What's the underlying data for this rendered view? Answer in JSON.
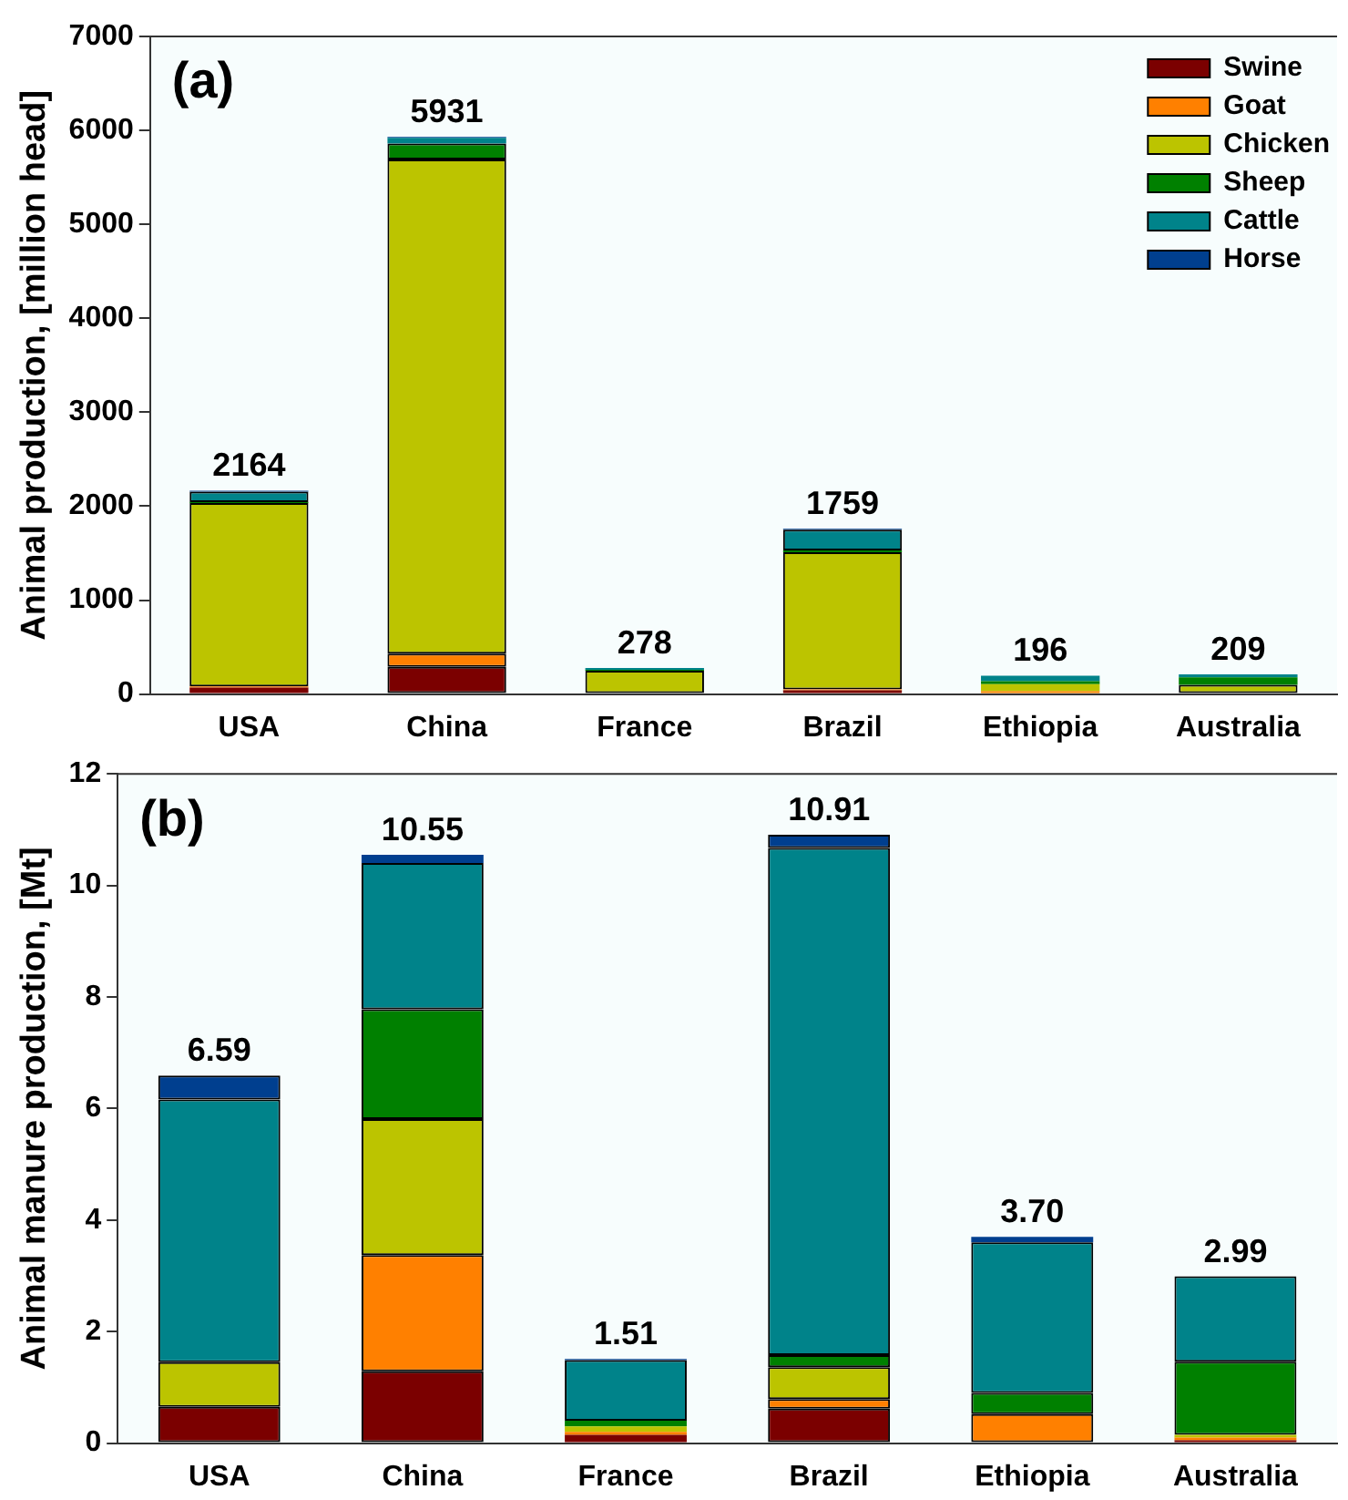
{
  "chart_data": [
    {
      "type": "bar",
      "stacked": true,
      "ylabel": "Animal production, [million head]",
      "annotations": [
        "(a)"
      ],
      "categories": [
        "USA",
        "China",
        "France",
        "Brazil",
        "Ethiopia",
        "Australia"
      ],
      "ylim": [
        0,
        7000
      ],
      "yticks": [
        0,
        1000,
        2000,
        3000,
        4000,
        5000,
        6000,
        7000
      ],
      "legend": "top right",
      "totals": [
        "2164",
        "5931",
        "278",
        "1759",
        "196",
        "209"
      ],
      "series": [
        {
          "name": "Swine",
          "color": "#7b0000",
          "values": [
            70,
            290,
            10,
            40,
            0,
            0
          ]
        },
        {
          "name": "Goat",
          "color": "#ff8000",
          "values": [
            10,
            140,
            0,
            10,
            30,
            0
          ]
        },
        {
          "name": "Chicken",
          "color": "#bcc400",
          "values": [
            1954,
            5261,
            238,
            1459,
            76,
            99
          ]
        },
        {
          "name": "Sheep",
          "color": "#008000",
          "values": [
            10,
            170,
            10,
            20,
            30,
            80
          ]
        },
        {
          "name": "Cattle",
          "color": "#00838a",
          "values": [
            110,
            60,
            20,
            220,
            60,
            30
          ]
        },
        {
          "name": "Horse",
          "color": "#003f8f",
          "values": [
            10,
            10,
            0,
            10,
            0,
            0
          ]
        }
      ]
    },
    {
      "type": "bar",
      "stacked": true,
      "ylabel": "Animal manure production, [Mt]",
      "annotations": [
        "(b)"
      ],
      "categories": [
        "USA",
        "China",
        "France",
        "Brazil",
        "Ethiopia",
        "Australia"
      ],
      "ylim": [
        0,
        12
      ],
      "yticks": [
        0,
        2,
        4,
        6,
        8,
        10,
        12
      ],
      "totals": [
        "6.59",
        "10.55",
        "1.51",
        "10.91",
        "3.70",
        "2.99"
      ],
      "series": [
        {
          "color": "#7b0000",
          "values": [
            0.65,
            1.29,
            0.15,
            0.62,
            0,
            0.05
          ]
        },
        {
          "color": "#ff8000",
          "values": [
            0,
            2.08,
            0.05,
            0.17,
            0.52,
            0.05
          ]
        },
        {
          "color": "#bcc400",
          "values": [
            0.8,
            2.44,
            0.1,
            0.57,
            0,
            0.05
          ]
        },
        {
          "color": "#008000",
          "values": [
            0,
            1.97,
            0.1,
            0.22,
            0.38,
            1.31
          ]
        },
        {
          "color": "#00838a",
          "values": [
            4.71,
            2.62,
            1.09,
            9.09,
            2.7,
            1.53
          ]
        },
        {
          "color": "#003f8f",
          "values": [
            0.43,
            0.15,
            0.02,
            0.24,
            0.1,
            0
          ]
        }
      ]
    }
  ]
}
